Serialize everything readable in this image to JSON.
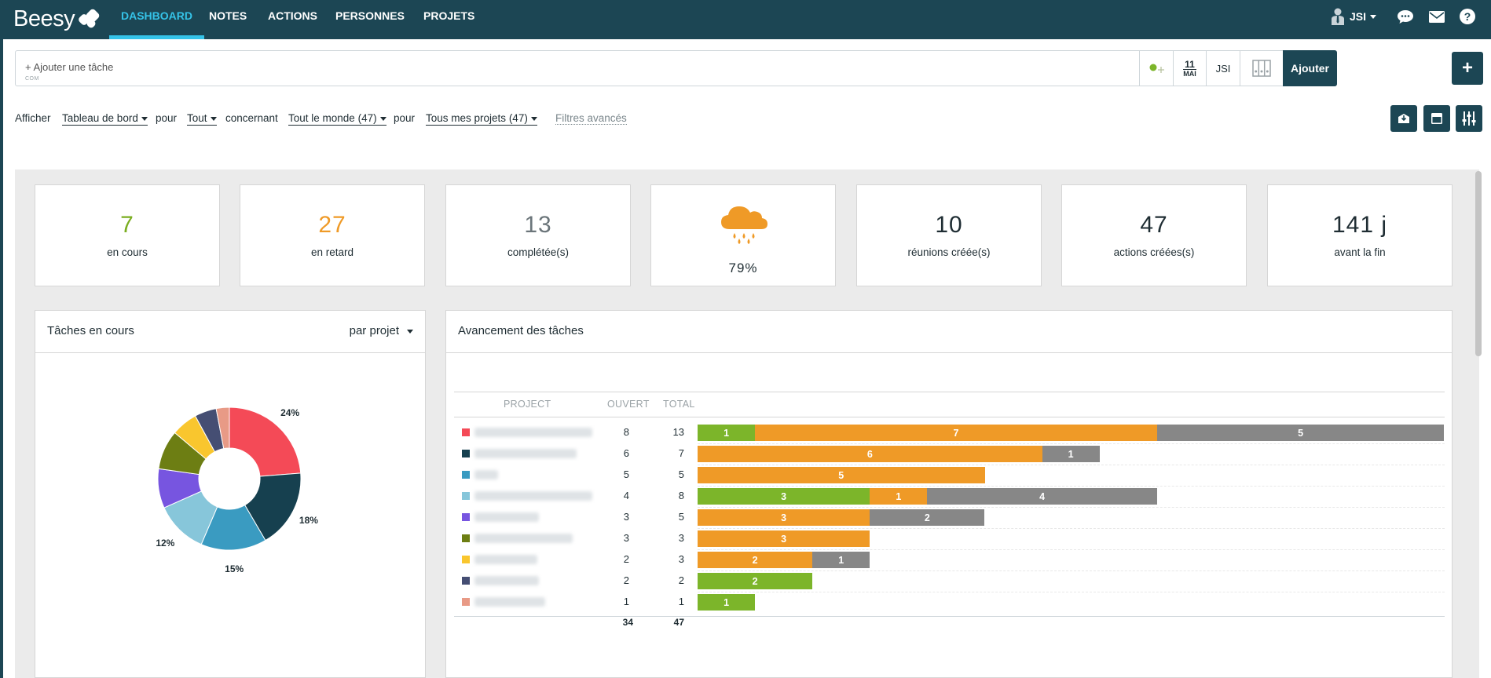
{
  "app": {
    "logo_text": "Beesy",
    "nav": [
      {
        "label": "DASHBOARD",
        "active": true
      },
      {
        "label": "NOTES",
        "active": false
      },
      {
        "label": "ACTIONS",
        "active": false
      },
      {
        "label": "PERSONNES",
        "active": false
      },
      {
        "label": "PROJETS",
        "active": false
      }
    ],
    "user": "JSI"
  },
  "task_bar": {
    "placeholder": "+ Ajouter une tâche",
    "sub": "COM",
    "date_day": "11",
    "date_month": "MAI",
    "assignee": "JSI",
    "add_label": "Ajouter",
    "plus_label": "+"
  },
  "filters": {
    "afficher": "Afficher",
    "view": "Tableau de bord",
    "pour1": "pour",
    "scope": "Tout",
    "concernant": "concernant",
    "people": "Tout le monde",
    "people_count": "(47)",
    "pour2": "pour",
    "projects": "Tous mes projets",
    "projects_count": "(47)",
    "advanced": "Filtres avancés"
  },
  "stats": [
    {
      "value": "7",
      "label": "en cours",
      "color": "#7aad1f"
    },
    {
      "value": "27",
      "label": "en retard",
      "color": "#ef9a27"
    },
    {
      "value": "13",
      "label": "complétée(s)",
      "color": "#6b757a"
    },
    {
      "value": "79%",
      "label": "",
      "icon": "rain-cloud-icon",
      "color": "#ef9a27"
    },
    {
      "value": "10",
      "label": "réunions créée(s)",
      "color": "#1f2d33"
    },
    {
      "value": "47",
      "label": "actions créées(s)",
      "color": "#1f2d33"
    },
    {
      "value": "141 j",
      "label": "avant la fin",
      "color": "#1f2d33"
    }
  ],
  "pie_panel": {
    "title": "Tâches en cours",
    "group_by": "par projet"
  },
  "bar_panel": {
    "title": "Avancement des tâches",
    "col_project": "PROJECT",
    "col_open": "OUVERT",
    "col_total": "TOTAL",
    "total_open": "34",
    "total_total": "47"
  },
  "colors": {
    "done": "#7cb52a",
    "late": "#ef9a27",
    "pending": "#878787",
    "nav_bg": "#1c4654",
    "accent": "#35c3e8"
  },
  "chart_data": [
    {
      "type": "pie",
      "title": "Tâches en cours",
      "slices": [
        {
          "value": 24,
          "label": "24%",
          "color": "#f44a57"
        },
        {
          "value": 18,
          "label": "18%",
          "color": "#16404f"
        },
        {
          "value": 15,
          "label": "15%",
          "color": "#3a9bc1"
        },
        {
          "value": 12,
          "label": "12%",
          "color": "#87c6da"
        },
        {
          "value": 9,
          "label": "",
          "color": "#7755e0"
        },
        {
          "value": 9,
          "label": "",
          "color": "#6d7e13"
        },
        {
          "value": 6,
          "label": "",
          "color": "#f9c62e"
        },
        {
          "value": 5,
          "label": "",
          "color": "#454e73"
        },
        {
          "value": 3,
          "label": "",
          "color": "#e89a86"
        }
      ]
    },
    {
      "type": "bar",
      "orientation": "horizontal",
      "stacked": true,
      "title": "Avancement des tâches",
      "xlim": [
        0,
        13
      ],
      "rows": [
        {
          "color": "#f44a57",
          "open": 8,
          "total": 13,
          "segments": [
            1,
            7,
            5
          ]
        },
        {
          "color": "#16404f",
          "open": 6,
          "total": 7,
          "segments": [
            0,
            6,
            1
          ]
        },
        {
          "color": "#3a9bc1",
          "open": 5,
          "total": 5,
          "segments": [
            0,
            5,
            0
          ]
        },
        {
          "color": "#87c6da",
          "open": 4,
          "total": 8,
          "segments": [
            3,
            1,
            4
          ]
        },
        {
          "color": "#7755e0",
          "open": 3,
          "total": 5,
          "segments": [
            0,
            3,
            2
          ]
        },
        {
          "color": "#6d7e13",
          "open": 3,
          "total": 3,
          "segments": [
            0,
            3,
            0
          ]
        },
        {
          "color": "#f9c62e",
          "open": 2,
          "total": 3,
          "segments": [
            0,
            2,
            1
          ]
        },
        {
          "color": "#454e73",
          "open": 2,
          "total": 2,
          "segments": [
            2,
            0,
            0
          ]
        },
        {
          "color": "#e89a86",
          "open": 1,
          "total": 1,
          "segments": [
            1,
            0,
            0
          ]
        }
      ]
    }
  ]
}
